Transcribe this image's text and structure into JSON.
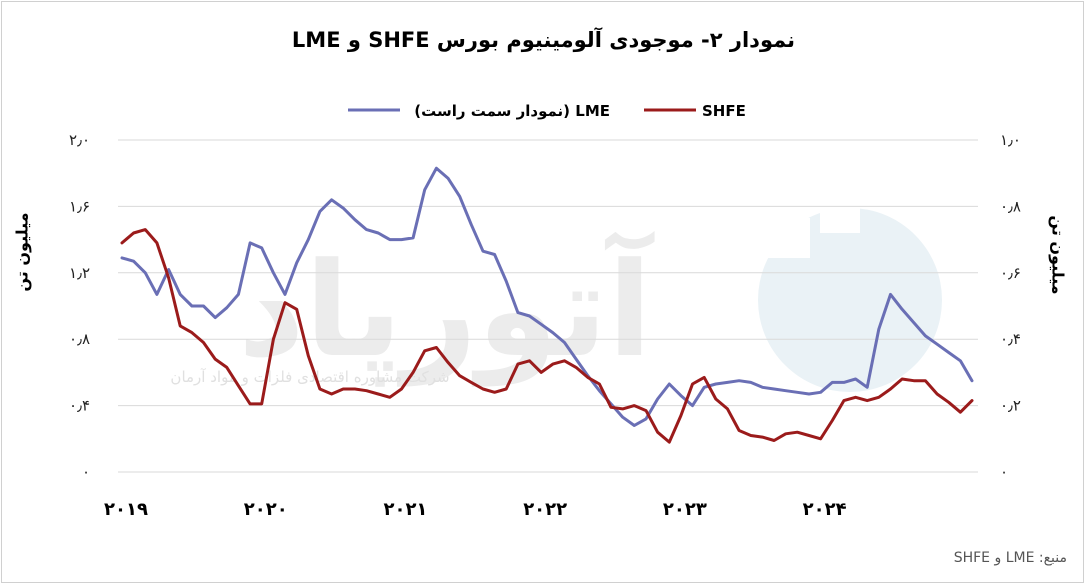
{
  "chart_data": {
    "type": "line",
    "title": "نمودار ۲- موجودی آلومینیوم بورس SHFE و LME",
    "left_axis": {
      "label": "میلیون تن",
      "ylim": [
        0,
        2.0
      ],
      "ticks": [
        0,
        0.4,
        0.8,
        1.2,
        1.6,
        2.0
      ],
      "tick_labels": [
        "۰",
        "۰٫۴",
        "۰٫۸",
        "۱٫۲",
        "۱٫۶",
        "۲٫۰"
      ]
    },
    "right_axis": {
      "label": "میلیون تن",
      "ylim": [
        0,
        1.0
      ],
      "ticks": [
        0,
        0.2,
        0.4,
        0.6,
        0.8,
        1.0
      ],
      "tick_labels": [
        "۰",
        "۰٫۲",
        "۰٫۴",
        "۰٫۶",
        "۰٫۸",
        "۱٫۰"
      ]
    },
    "x_labels": [
      "۲۰۱۹",
      "۲۰۲۰",
      "۲۰۲۱",
      "۲۰۲۲",
      "۲۰۲۳",
      "۲۰۲۴"
    ],
    "x_start_year": 2019,
    "x_label_positions": [
      0,
      12,
      24,
      36,
      48,
      60
    ],
    "x_count": 74,
    "grid": true,
    "legend_position": "top",
    "series": [
      {
        "name": "LME (نمودار سمت راست)",
        "axis": "right",
        "color": "#6a6fb5",
        "values": [
          0.645,
          0.635,
          0.6,
          0.535,
          0.61,
          0.535,
          0.5,
          0.5,
          0.465,
          0.495,
          0.535,
          0.69,
          0.675,
          0.6,
          0.535,
          0.63,
          0.7,
          0.785,
          0.82,
          0.795,
          0.76,
          0.73,
          0.72,
          0.7,
          0.7,
          0.705,
          0.85,
          0.915,
          0.885,
          0.83,
          0.745,
          0.665,
          0.655,
          0.575,
          0.48,
          0.47,
          0.445,
          0.42,
          0.39,
          0.34,
          0.29,
          0.245,
          0.205,
          0.165,
          0.14,
          0.16,
          0.22,
          0.265,
          0.23,
          0.2,
          0.255,
          0.265,
          0.27,
          0.275,
          0.27,
          0.255,
          0.25,
          0.245,
          0.24,
          0.235,
          0.24,
          0.27,
          0.27,
          0.28,
          0.255,
          0.43,
          0.535,
          0.49,
          0.45,
          0.41,
          0.385,
          0.36,
          0.335,
          0.275
        ]
      },
      {
        "name": "SHFE",
        "axis": "left",
        "color": "#9b1b1b",
        "values": [
          1.38,
          1.44,
          1.46,
          1.38,
          1.17,
          0.88,
          0.84,
          0.78,
          0.68,
          0.63,
          0.52,
          0.41,
          0.41,
          0.8,
          1.02,
          0.98,
          0.7,
          0.5,
          0.47,
          0.5,
          0.5,
          0.49,
          0.47,
          0.45,
          0.5,
          0.6,
          0.73,
          0.75,
          0.66,
          0.58,
          0.54,
          0.5,
          0.48,
          0.5,
          0.65,
          0.67,
          0.6,
          0.65,
          0.67,
          0.63,
          0.57,
          0.53,
          0.39,
          0.38,
          0.4,
          0.37,
          0.24,
          0.18,
          0.34,
          0.53,
          0.57,
          0.44,
          0.38,
          0.25,
          0.22,
          0.21,
          0.19,
          0.23,
          0.24,
          0.22,
          0.2,
          0.31,
          0.43,
          0.45,
          0.43,
          0.45,
          0.5,
          0.56,
          0.55,
          0.55,
          0.47,
          0.42,
          0.36,
          0.43
        ]
      }
    ]
  },
  "watermark": {
    "brand": "آتورپاد",
    "tagline": "شرکت مشاوره اقتصادی فلزات و مواد آرمان",
    "color": "#e6e6e6"
  },
  "source": "منبع: LME و SHFE"
}
